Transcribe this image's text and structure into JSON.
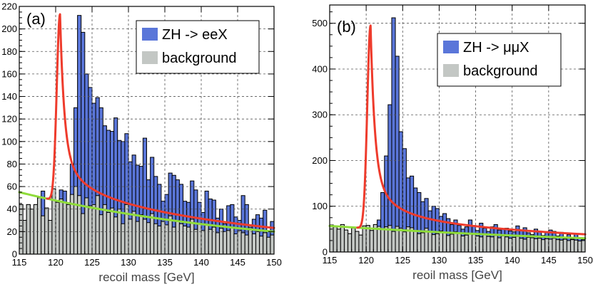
{
  "colors": {
    "signal": "#5a76d9",
    "background": "#c3c7c4",
    "signal_fit": "#ee3b2c",
    "background_fit": "#8fdc3a",
    "outline": "#000000"
  },
  "chart_data": [
    {
      "type": "bar",
      "panel": "(a)",
      "xlabel": "recoil mass [GeV]",
      "ylabel": "",
      "xlim": [
        115,
        150
      ],
      "ylim": [
        0,
        220
      ],
      "xticks": [
        115,
        120,
        125,
        130,
        135,
        140,
        145,
        150
      ],
      "yticks": [
        0,
        20,
        40,
        60,
        80,
        100,
        120,
        140,
        160,
        180,
        200,
        220
      ],
      "grid": true,
      "legend": {
        "position": "top-right",
        "entries": [
          "ZH -> eeX",
          "background"
        ]
      },
      "bin_edges_start": 115,
      "bin_width": 0.5,
      "series": [
        {
          "name": "ZH -> eeX",
          "kind": "total",
          "values": [
            44,
            30,
            44,
            40,
            44,
            50,
            56,
            41,
            30,
            58,
            46,
            57,
            56,
            44,
            80,
            130,
            212,
            197,
            160,
            148,
            134,
            139,
            130,
            114,
            110,
            109,
            121,
            101,
            100,
            107,
            82,
            88,
            79,
            78,
            103,
            66,
            86,
            69,
            62,
            47,
            53,
            72,
            70,
            66,
            62,
            47,
            46,
            65,
            57,
            46,
            37,
            56,
            49,
            48,
            32,
            40,
            27,
            43,
            44,
            33,
            30,
            52,
            44,
            24,
            31,
            35,
            32,
            39,
            20,
            29
          ]
        },
        {
          "name": "background",
          "kind": "background",
          "values": [
            44,
            30,
            44,
            40,
            44,
            50,
            34,
            41,
            30,
            58,
            46,
            49,
            46,
            44,
            53,
            60,
            52,
            36,
            50,
            43,
            44,
            52,
            35,
            44,
            37,
            41,
            33,
            40,
            27,
            44,
            31,
            38,
            29,
            35,
            31,
            28,
            36,
            27,
            25,
            29,
            26,
            34,
            24,
            30,
            27,
            25,
            24,
            31,
            22,
            27,
            21,
            26,
            22,
            24,
            19,
            23,
            20,
            21,
            24,
            18,
            21,
            19,
            17,
            22,
            18,
            20,
            16,
            19,
            15,
            17
          ]
        },
        {
          "name": "signal fit",
          "kind": "fit",
          "peak_x": 120.6,
          "peak_y": 213,
          "tail_end_y": 20
        },
        {
          "name": "background fit",
          "kind": "fit",
          "x_range": [
            115,
            150
          ],
          "y_start": 55,
          "y_end": 20
        }
      ]
    },
    {
      "type": "bar",
      "panel": "(b)",
      "xlabel": "reoil mass [GeV]",
      "ylabel": "",
      "xlim": [
        115,
        150
      ],
      "ylim": [
        0,
        540
      ],
      "xticks": [
        115,
        120,
        125,
        130,
        135,
        140,
        145,
        150
      ],
      "yticks": [
        0,
        100,
        200,
        300,
        400,
        500
      ],
      "grid": true,
      "legend": {
        "position": "top-right",
        "entries": [
          "ZH -> μμX",
          "background"
        ]
      },
      "bin_edges_start": 115,
      "bin_width": 0.5,
      "series": [
        {
          "name": "ZH -> μμX",
          "kind": "total",
          "values": [
            59,
            55,
            50,
            60,
            48,
            40,
            52,
            45,
            37,
            57,
            58,
            47,
            60,
            70,
            130,
            210,
            322,
            512,
            428,
            263,
            226,
            162,
            166,
            140,
            130,
            110,
            117,
            90,
            100,
            95,
            78,
            84,
            73,
            60,
            70,
            58,
            50,
            55,
            70,
            58,
            47,
            63,
            52,
            45,
            55,
            60,
            48,
            50,
            52,
            46,
            44,
            57,
            48,
            53,
            42,
            38,
            50,
            46,
            36,
            43,
            48,
            45,
            35,
            43,
            30,
            38,
            28,
            40,
            31,
            27
          ]
        },
        {
          "name": "background",
          "kind": "background",
          "values": [
            59,
            55,
            50,
            60,
            48,
            40,
            52,
            45,
            37,
            57,
            58,
            47,
            60,
            56,
            50,
            55,
            58,
            45,
            56,
            52,
            44,
            55,
            53,
            47,
            40,
            42,
            52,
            45,
            38,
            40,
            46,
            42,
            36,
            39,
            44,
            40,
            35,
            37,
            40,
            38,
            35,
            33,
            39,
            34,
            33,
            36,
            31,
            35,
            33,
            30,
            32,
            34,
            30,
            28,
            32,
            31,
            29,
            30,
            27,
            29,
            28,
            30,
            27,
            26,
            28,
            25,
            27,
            26,
            24,
            25
          ]
        },
        {
          "name": "signal fit",
          "kind": "fit",
          "peak_x": 120.6,
          "peak_y": 495,
          "tail_end_y": 30
        },
        {
          "name": "background fit",
          "kind": "fit",
          "x_range": [
            115,
            150
          ],
          "y_start": 57,
          "y_end": 30
        }
      ]
    }
  ]
}
